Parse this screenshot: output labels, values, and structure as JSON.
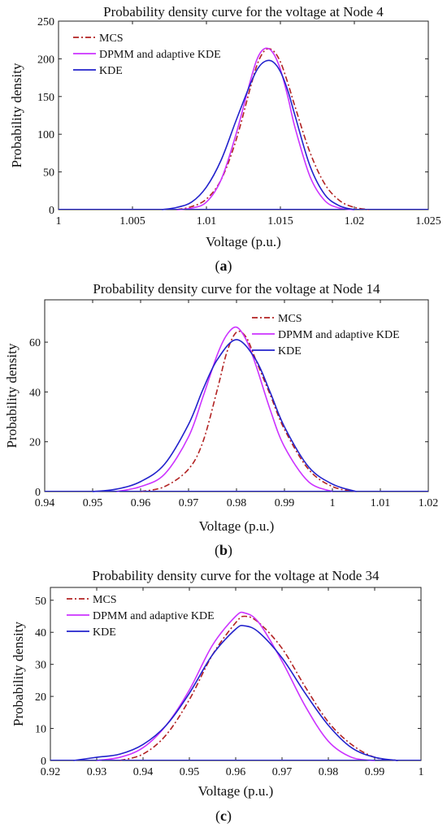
{
  "panels": [
    {
      "letter": "a",
      "label_open": "(",
      "label_close": ")"
    },
    {
      "letter": "b",
      "label_open": "(",
      "label_close": ")"
    },
    {
      "letter": "c",
      "label_open": "(",
      "label_close": ")"
    }
  ],
  "chart_data": [
    {
      "type": "line",
      "title": "Probability density curve for the voltage at Node 4",
      "xlabel": "Voltage (p.u.)",
      "ylabel": "Probability density",
      "xlim": [
        1,
        1.025
      ],
      "ylim": [
        0,
        250
      ],
      "xticks": [
        1,
        1.005,
        1.01,
        1.015,
        1.02,
        1.025
      ],
      "xtick_labels": [
        "1",
        "1.005",
        "1.01",
        "1.015",
        "1.02",
        "1.025"
      ],
      "yticks": [
        0,
        50,
        100,
        150,
        200,
        250
      ],
      "ytick_labels": [
        "0",
        "50",
        "100",
        "150",
        "200",
        "250"
      ],
      "legend_position": "top-left",
      "series": [
        {
          "name": "MCS",
          "color": "#b22222",
          "dash": "dash-dot",
          "x": [
            1.008,
            1.009,
            1.01,
            1.011,
            1.012,
            1.013,
            1.0135,
            1.014,
            1.0145,
            1.015,
            1.0155,
            1.016,
            1.017,
            1.018,
            1.019,
            1.02,
            1.021
          ],
          "y": [
            0,
            4,
            14,
            40,
            92,
            164,
            196,
            212,
            211,
            196,
            168,
            136,
            76,
            34,
            12,
            3,
            0
          ]
        },
        {
          "name": "DPMM and adaptive KDE",
          "color": "#cc33ff",
          "dash": "solid",
          "x": [
            1.008,
            1.009,
            1.01,
            1.011,
            1.012,
            1.013,
            1.0135,
            1.014,
            1.0145,
            1.015,
            1.0155,
            1.016,
            1.017,
            1.018,
            1.019,
            1.02
          ],
          "y": [
            0,
            2,
            10,
            40,
            100,
            173,
            203,
            214,
            208,
            186,
            150,
            108,
            44,
            12,
            2,
            0
          ]
        },
        {
          "name": "KDE",
          "color": "#2222cc",
          "dash": "solid",
          "x": [
            1.007,
            1.008,
            1.009,
            1.01,
            1.011,
            1.012,
            1.013,
            1.0135,
            1.014,
            1.0145,
            1.015,
            1.0155,
            1.016,
            1.017,
            1.018,
            1.019,
            1.02
          ],
          "y": [
            0,
            3,
            10,
            30,
            66,
            118,
            168,
            188,
            197,
            196,
            183,
            158,
            124,
            58,
            20,
            5,
            0
          ]
        }
      ]
    },
    {
      "type": "line",
      "title": "Probability density curve for the voltage at Node 14",
      "xlabel": "Voltage (p.u.)",
      "ylabel": "Probability density",
      "xlim": [
        0.94,
        1.02
      ],
      "ylim": [
        0,
        77
      ],
      "xticks": [
        0.94,
        0.95,
        0.96,
        0.97,
        0.98,
        0.99,
        1,
        1.01,
        1.02
      ],
      "xtick_labels": [
        "0.94",
        "0.95",
        "0.96",
        "0.97",
        "0.98",
        "0.99",
        "1",
        "1.01",
        "1.02"
      ],
      "yticks": [
        0,
        20,
        40,
        60
      ],
      "ytick_labels": [
        "0",
        "20",
        "40",
        "60"
      ],
      "legend_position": "top-right",
      "series": [
        {
          "name": "MCS",
          "color": "#b22222",
          "dash": "dash-dot",
          "x": [
            0.96,
            0.965,
            0.97,
            0.973,
            0.976,
            0.978,
            0.98,
            0.982,
            0.984,
            0.987,
            0.99,
            0.995,
            1,
            1.005
          ],
          "y": [
            0,
            2,
            9,
            20,
            41,
            56,
            64,
            62,
            53,
            39,
            25,
            9,
            2,
            0
          ]
        },
        {
          "name": "DPMM and adaptive KDE",
          "color": "#cc33ff",
          "dash": "solid",
          "x": [
            0.955,
            0.96,
            0.965,
            0.97,
            0.973,
            0.976,
            0.978,
            0.98,
            0.982,
            0.984,
            0.987,
            0.99,
            0.995,
            1
          ],
          "y": [
            0,
            2,
            7,
            22,
            38,
            55,
            63,
            66,
            61,
            51,
            33,
            18,
            4,
            0
          ]
        },
        {
          "name": "KDE",
          "color": "#2222cc",
          "dash": "solid",
          "x": [
            0.95,
            0.955,
            0.96,
            0.965,
            0.97,
            0.973,
            0.976,
            0.98,
            0.984,
            0.987,
            0.99,
            0.995,
            1,
            1.005
          ],
          "y": [
            0,
            1,
            4,
            11,
            27,
            41,
            53,
            61,
            53,
            40,
            26,
            10,
            3,
            0
          ]
        }
      ]
    },
    {
      "type": "line",
      "title": "Probability density curve for the voltage at Node 34",
      "xlabel": "Voltage (p.u.)",
      "ylabel": "Probability density",
      "xlim": [
        0.92,
        1
      ],
      "ylim": [
        0,
        54
      ],
      "xticks": [
        0.92,
        0.93,
        0.94,
        0.95,
        0.96,
        0.97,
        0.98,
        0.99,
        1
      ],
      "xtick_labels": [
        "0.92",
        "0.93",
        "0.94",
        "0.95",
        "0.96",
        "0.97",
        "0.98",
        "0.99",
        "1"
      ],
      "yticks": [
        0,
        10,
        20,
        30,
        40,
        50
      ],
      "ytick_labels": [
        "0",
        "10",
        "20",
        "30",
        "40",
        "50"
      ],
      "legend_position": "top-left",
      "series": [
        {
          "name": "MCS",
          "color": "#b22222",
          "dash": "dash-dot",
          "x": [
            0.935,
            0.94,
            0.945,
            0.95,
            0.955,
            0.96,
            0.962,
            0.965,
            0.97,
            0.975,
            0.98,
            0.985,
            0.99,
            0.995
          ],
          "y": [
            0,
            2,
            8,
            19,
            33,
            43,
            45,
            43,
            35,
            23,
            12,
            5,
            1,
            0
          ]
        },
        {
          "name": "DPMM and adaptive KDE",
          "color": "#cc33ff",
          "dash": "solid",
          "x": [
            0.93,
            0.935,
            0.94,
            0.945,
            0.95,
            0.955,
            0.96,
            0.962,
            0.965,
            0.97,
            0.975,
            0.98,
            0.985,
            0.99
          ],
          "y": [
            0,
            1,
            4,
            11,
            22,
            36,
            45,
            46,
            43,
            31,
            17,
            6,
            1,
            0
          ]
        },
        {
          "name": "KDE",
          "color": "#2222cc",
          "dash": "solid",
          "x": [
            0.925,
            0.93,
            0.935,
            0.94,
            0.945,
            0.95,
            0.955,
            0.96,
            0.962,
            0.965,
            0.97,
            0.975,
            0.98,
            0.985,
            0.99,
            0.995
          ],
          "y": [
            0,
            1,
            2,
            5,
            11,
            21,
            33,
            41,
            42,
            40,
            32,
            21,
            11,
            4,
            1,
            0
          ]
        }
      ]
    }
  ]
}
